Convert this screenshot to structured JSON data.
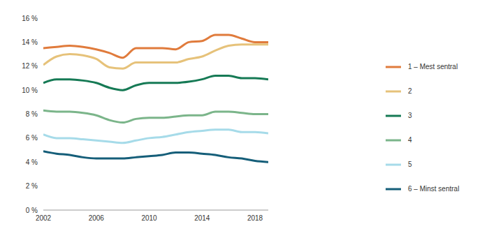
{
  "chart_data": {
    "type": "line",
    "x": [
      2002,
      2003,
      2004,
      2005,
      2006,
      2007,
      2008,
      2009,
      2010,
      2011,
      2012,
      2013,
      2014,
      2015,
      2016,
      2017,
      2018,
      2019
    ],
    "series": [
      {
        "name": "1 – Mest sentral",
        "color": "#e07b3c",
        "values": [
          13.5,
          13.6,
          13.7,
          13.6,
          13.4,
          13.1,
          12.7,
          13.5,
          13.5,
          13.5,
          13.4,
          14.0,
          14.1,
          14.6,
          14.6,
          14.3,
          14.0,
          14.0
        ]
      },
      {
        "name": "2",
        "color": "#e6c27a",
        "values": [
          12.1,
          12.8,
          13.0,
          12.9,
          12.6,
          11.9,
          11.8,
          12.3,
          12.3,
          12.3,
          12.3,
          12.6,
          12.8,
          13.3,
          13.7,
          13.8,
          13.8,
          13.8
        ]
      },
      {
        "name": "3",
        "color": "#167a55",
        "values": [
          10.6,
          10.9,
          10.9,
          10.8,
          10.6,
          10.2,
          10.0,
          10.4,
          10.6,
          10.6,
          10.6,
          10.7,
          10.9,
          11.2,
          11.2,
          11.0,
          11.0,
          10.9
        ]
      },
      {
        "name": "4",
        "color": "#7bb58a",
        "values": [
          8.3,
          8.2,
          8.2,
          8.1,
          7.9,
          7.5,
          7.3,
          7.6,
          7.7,
          7.7,
          7.8,
          7.9,
          7.9,
          8.2,
          8.2,
          8.1,
          8.0,
          8.0
        ]
      },
      {
        "name": "5",
        "color": "#a6dbe9",
        "values": [
          6.3,
          6.0,
          6.0,
          5.9,
          5.8,
          5.7,
          5.6,
          5.8,
          6.0,
          6.1,
          6.3,
          6.5,
          6.6,
          6.7,
          6.7,
          6.5,
          6.5,
          6.4
        ]
      },
      {
        "name": "6 – Minst sentral",
        "color": "#155e79",
        "values": [
          4.9,
          4.7,
          4.6,
          4.4,
          4.3,
          4.3,
          4.3,
          4.4,
          4.5,
          4.6,
          4.8,
          4.8,
          4.7,
          4.6,
          4.4,
          4.3,
          4.1,
          4.0
        ]
      }
    ],
    "xlim": [
      2002,
      2019
    ],
    "xticks": [
      2002,
      2006,
      2010,
      2014,
      2018
    ],
    "ylim": [
      0,
      16
    ],
    "yticks": [
      {
        "value": 0,
        "label": "0 %"
      },
      {
        "value": 2,
        "label": "2 %"
      },
      {
        "value": 4,
        "label": "4 %"
      },
      {
        "value": 6,
        "label": "6 %"
      },
      {
        "value": 8,
        "label": "8 %"
      },
      {
        "value": 10,
        "label": "10 %"
      },
      {
        "value": 12,
        "label": "12 %"
      },
      {
        "value": 14,
        "label": "14 %"
      },
      {
        "value": 16,
        "label": "16 %"
      }
    ],
    "grid": false,
    "legend": "right"
  }
}
